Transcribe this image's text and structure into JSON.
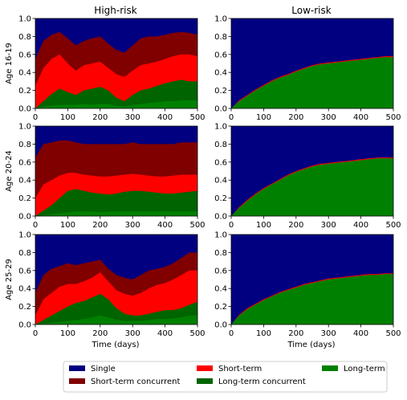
{
  "chart_data": {
    "type": "area",
    "stacked": true,
    "column_titles": [
      "High-risk",
      "Low-risk"
    ],
    "row_labels": [
      "Age 16-19",
      "Age 20-24",
      "Age 25-29"
    ],
    "xlabel": "Time (days)",
    "xlim": [
      0,
      500
    ],
    "ylim": [
      0,
      1.0
    ],
    "xticks": [
      0,
      100,
      200,
      300,
      400,
      500
    ],
    "yticks": [
      0.0,
      0.2,
      0.4,
      0.6,
      0.8,
      1.0
    ],
    "x": [
      0,
      25,
      50,
      75,
      100,
      125,
      150,
      175,
      200,
      225,
      250,
      275,
      300,
      325,
      350,
      375,
      400,
      425,
      450,
      475,
      500
    ],
    "series_order": [
      "Long-term",
      "Long-term concurrent",
      "Short-term",
      "Short-term concurrent",
      "Single"
    ],
    "series_colors": {
      "Single": "#000080",
      "Short-term concurrent": "#800000",
      "Short-term": "#ff0000",
      "Long-term concurrent": "#006400",
      "Long-term": "#008000"
    },
    "legend": {
      "placement": "bottom",
      "entries": [
        "Single",
        "Short-term concurrent",
        "Short-term",
        "Long-term concurrent",
        "Long-term"
      ]
    },
    "panels": [
      {
        "row": 0,
        "col": 0,
        "cumulative": {
          "Long-term": [
            0.0,
            0.02,
            0.03,
            0.04,
            0.04,
            0.04,
            0.05,
            0.04,
            0.05,
            0.05,
            0.03,
            0.02,
            0.04,
            0.05,
            0.06,
            0.07,
            0.08,
            0.08,
            0.09,
            0.09,
            0.09
          ],
          "Long-term concurrent": [
            0.0,
            0.08,
            0.16,
            0.22,
            0.18,
            0.15,
            0.2,
            0.22,
            0.24,
            0.2,
            0.12,
            0.08,
            0.15,
            0.2,
            0.22,
            0.25,
            0.28,
            0.3,
            0.32,
            0.3,
            0.3
          ],
          "Short-term": [
            0.25,
            0.45,
            0.55,
            0.6,
            0.5,
            0.42,
            0.48,
            0.5,
            0.52,
            0.45,
            0.38,
            0.35,
            0.42,
            0.48,
            0.5,
            0.52,
            0.55,
            0.58,
            0.6,
            0.6,
            0.58
          ],
          "Short-term concurrent": [
            0.55,
            0.75,
            0.82,
            0.85,
            0.78,
            0.7,
            0.75,
            0.78,
            0.8,
            0.72,
            0.65,
            0.62,
            0.7,
            0.78,
            0.8,
            0.8,
            0.82,
            0.84,
            0.85,
            0.84,
            0.82
          ]
        }
      },
      {
        "row": 0,
        "col": 1,
        "cumulative": {
          "Long-term": [
            0.0,
            0.08,
            0.14,
            0.2,
            0.25,
            0.3,
            0.34,
            0.37,
            0.41,
            0.44,
            0.47,
            0.49,
            0.5,
            0.51,
            0.52,
            0.53,
            0.54,
            0.55,
            0.56,
            0.57,
            0.57
          ],
          "Long-term concurrent": [
            0.0,
            0.08,
            0.14,
            0.2,
            0.25,
            0.3,
            0.34,
            0.37,
            0.41,
            0.44,
            0.47,
            0.49,
            0.5,
            0.51,
            0.52,
            0.53,
            0.54,
            0.55,
            0.56,
            0.57,
            0.57
          ],
          "Short-term": [
            0.0,
            0.09,
            0.15,
            0.21,
            0.26,
            0.31,
            0.35,
            0.38,
            0.42,
            0.45,
            0.48,
            0.5,
            0.51,
            0.52,
            0.53,
            0.54,
            0.55,
            0.56,
            0.57,
            0.58,
            0.58
          ],
          "Short-term concurrent": [
            0.0,
            0.09,
            0.15,
            0.21,
            0.26,
            0.31,
            0.35,
            0.38,
            0.42,
            0.45,
            0.48,
            0.5,
            0.51,
            0.52,
            0.53,
            0.54,
            0.55,
            0.56,
            0.57,
            0.58,
            0.58
          ]
        }
      },
      {
        "row": 1,
        "col": 0,
        "cumulative": {
          "Long-term": [
            0.0,
            0.01,
            0.02,
            0.03,
            0.04,
            0.05,
            0.05,
            0.05,
            0.04,
            0.05,
            0.05,
            0.05,
            0.05,
            0.05,
            0.05,
            0.05,
            0.05,
            0.05,
            0.05,
            0.05,
            0.05
          ],
          "Long-term concurrent": [
            0.0,
            0.06,
            0.12,
            0.2,
            0.28,
            0.3,
            0.28,
            0.26,
            0.25,
            0.24,
            0.25,
            0.27,
            0.28,
            0.28,
            0.27,
            0.26,
            0.25,
            0.25,
            0.26,
            0.27,
            0.28
          ],
          "Short-term": [
            0.2,
            0.35,
            0.4,
            0.45,
            0.48,
            0.48,
            0.46,
            0.45,
            0.44,
            0.44,
            0.45,
            0.46,
            0.47,
            0.46,
            0.45,
            0.44,
            0.44,
            0.45,
            0.46,
            0.46,
            0.46
          ],
          "Short-term concurrent": [
            0.65,
            0.8,
            0.82,
            0.84,
            0.84,
            0.82,
            0.8,
            0.8,
            0.8,
            0.8,
            0.8,
            0.8,
            0.82,
            0.8,
            0.8,
            0.8,
            0.8,
            0.8,
            0.82,
            0.82,
            0.82
          ]
        }
      },
      {
        "row": 1,
        "col": 1,
        "cumulative": {
          "Long-term": [
            0.0,
            0.09,
            0.17,
            0.24,
            0.3,
            0.35,
            0.4,
            0.45,
            0.49,
            0.52,
            0.55,
            0.57,
            0.58,
            0.59,
            0.6,
            0.61,
            0.62,
            0.63,
            0.64,
            0.64,
            0.64
          ],
          "Long-term concurrent": [
            0.0,
            0.09,
            0.17,
            0.24,
            0.3,
            0.35,
            0.4,
            0.45,
            0.49,
            0.52,
            0.55,
            0.57,
            0.58,
            0.59,
            0.6,
            0.61,
            0.62,
            0.63,
            0.64,
            0.64,
            0.64
          ],
          "Short-term": [
            0.0,
            0.1,
            0.18,
            0.25,
            0.31,
            0.36,
            0.41,
            0.46,
            0.5,
            0.53,
            0.56,
            0.58,
            0.59,
            0.6,
            0.61,
            0.62,
            0.63,
            0.64,
            0.65,
            0.65,
            0.65
          ],
          "Short-term concurrent": [
            0.0,
            0.1,
            0.18,
            0.25,
            0.31,
            0.36,
            0.41,
            0.46,
            0.5,
            0.53,
            0.56,
            0.58,
            0.59,
            0.6,
            0.61,
            0.62,
            0.63,
            0.64,
            0.65,
            0.65,
            0.65
          ]
        }
      },
      {
        "row": 2,
        "col": 0,
        "cumulative": {
          "Long-term": [
            0.0,
            0.01,
            0.02,
            0.03,
            0.04,
            0.05,
            0.06,
            0.08,
            0.1,
            0.08,
            0.05,
            0.04,
            0.04,
            0.04,
            0.05,
            0.06,
            0.06,
            0.07,
            0.08,
            0.1,
            0.1
          ],
          "Long-term concurrent": [
            0.0,
            0.05,
            0.1,
            0.15,
            0.2,
            0.24,
            0.26,
            0.3,
            0.34,
            0.28,
            0.18,
            0.12,
            0.1,
            0.1,
            0.12,
            0.14,
            0.16,
            0.16,
            0.18,
            0.22,
            0.25
          ],
          "Short-term": [
            0.1,
            0.28,
            0.35,
            0.42,
            0.45,
            0.45,
            0.48,
            0.52,
            0.58,
            0.48,
            0.38,
            0.34,
            0.32,
            0.35,
            0.4,
            0.44,
            0.46,
            0.5,
            0.55,
            0.6,
            0.6
          ],
          "Short-term concurrent": [
            0.35,
            0.55,
            0.62,
            0.65,
            0.68,
            0.66,
            0.68,
            0.7,
            0.72,
            0.62,
            0.55,
            0.52,
            0.5,
            0.55,
            0.6,
            0.62,
            0.64,
            0.68,
            0.74,
            0.8,
            0.8
          ]
        }
      },
      {
        "row": 2,
        "col": 1,
        "cumulative": {
          "Long-term": [
            0.0,
            0.1,
            0.17,
            0.22,
            0.27,
            0.31,
            0.35,
            0.38,
            0.41,
            0.44,
            0.46,
            0.48,
            0.5,
            0.51,
            0.52,
            0.53,
            0.54,
            0.55,
            0.55,
            0.56,
            0.56
          ],
          "Long-term concurrent": [
            0.0,
            0.1,
            0.17,
            0.22,
            0.27,
            0.31,
            0.35,
            0.38,
            0.41,
            0.44,
            0.46,
            0.48,
            0.5,
            0.51,
            0.52,
            0.53,
            0.54,
            0.55,
            0.55,
            0.56,
            0.56
          ],
          "Short-term": [
            0.0,
            0.11,
            0.18,
            0.23,
            0.28,
            0.32,
            0.36,
            0.39,
            0.42,
            0.45,
            0.47,
            0.49,
            0.51,
            0.52,
            0.53,
            0.54,
            0.55,
            0.56,
            0.56,
            0.57,
            0.57
          ],
          "Short-term concurrent": [
            0.0,
            0.11,
            0.18,
            0.23,
            0.28,
            0.32,
            0.36,
            0.39,
            0.42,
            0.45,
            0.47,
            0.49,
            0.51,
            0.52,
            0.53,
            0.54,
            0.55,
            0.56,
            0.56,
            0.57,
            0.57
          ]
        }
      }
    ]
  }
}
